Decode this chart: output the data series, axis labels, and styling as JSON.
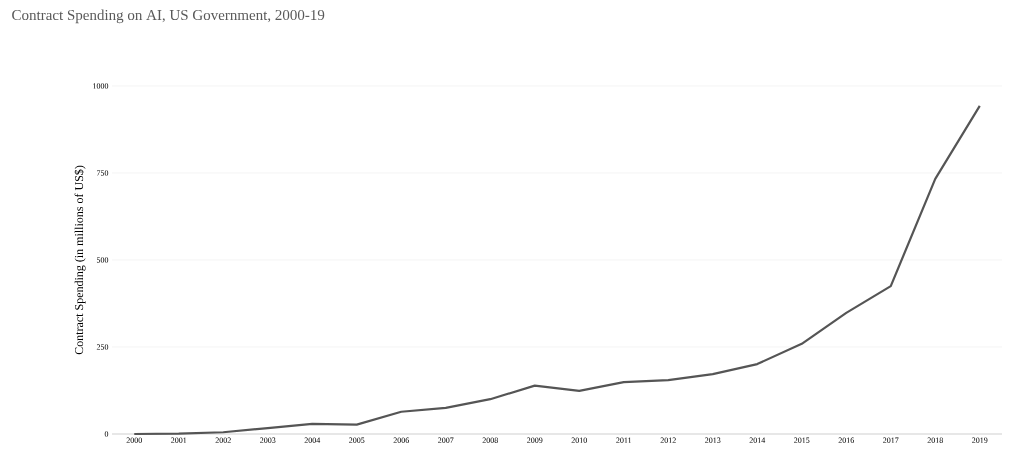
{
  "chart_data": {
    "type": "line",
    "title": "Contract Spending on AI, US Government, 2000-19",
    "ylabel": "Contract Spending (in millions of US$)",
    "categories": [
      "2000",
      "2001",
      "2002",
      "2003",
      "2004",
      "2005",
      "2006",
      "2007",
      "2008",
      "2009",
      "2010",
      "2011",
      "2012",
      "2013",
      "2014",
      "2015",
      "2016",
      "2017",
      "2018",
      "2019"
    ],
    "series": [
      {
        "color": "#555555",
        "values": [
          0,
          1,
          5,
          17,
          29,
          27,
          64,
          75,
          100,
          139,
          124,
          149,
          155,
          172,
          201,
          259,
          348,
          425,
          733,
          943
        ]
      }
    ],
    "ylim": [
      0,
      1000
    ],
    "yticks": [
      0,
      250,
      500,
      750,
      1000
    ],
    "grid": "y",
    "marker": "none",
    "line_style": "solid"
  }
}
